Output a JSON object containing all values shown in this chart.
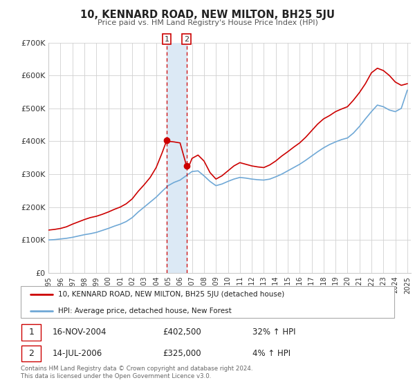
{
  "title": "10, KENNARD ROAD, NEW MILTON, BH25 5JU",
  "subtitle": "Price paid vs. HM Land Registry's House Price Index (HPI)",
  "legend_line1": "10, KENNARD ROAD, NEW MILTON, BH25 5JU (detached house)",
  "legend_line2": "HPI: Average price, detached house, New Forest",
  "sale1_date": "16-NOV-2004",
  "sale1_price": "£402,500",
  "sale1_hpi": "32% ↑ HPI",
  "sale1_date_num": 2004.88,
  "sale1_price_val": 402500,
  "sale2_date": "14-JUL-2006",
  "sale2_price": "£325,000",
  "sale2_hpi": "4% ↑ HPI",
  "sale2_date_num": 2006.54,
  "sale2_price_val": 325000,
  "footnote": "Contains HM Land Registry data © Crown copyright and database right 2024.\nThis data is licensed under the Open Government Licence v3.0.",
  "hpi_color": "#6fa8d6",
  "price_color": "#cc0000",
  "shade_color": "#dce9f5",
  "ylim": [
    0,
    700000
  ],
  "xlim_start": 1995.0,
  "xlim_end": 2025.3,
  "hpi_data": [
    [
      1995.0,
      100000
    ],
    [
      1995.5,
      101000
    ],
    [
      1996.0,
      103000
    ],
    [
      1996.5,
      105000
    ],
    [
      1997.0,
      108000
    ],
    [
      1997.5,
      112000
    ],
    [
      1998.0,
      116000
    ],
    [
      1998.5,
      119000
    ],
    [
      1999.0,
      123000
    ],
    [
      1999.5,
      129000
    ],
    [
      2000.0,
      135000
    ],
    [
      2000.5,
      142000
    ],
    [
      2001.0,
      148000
    ],
    [
      2001.5,
      156000
    ],
    [
      2002.0,
      168000
    ],
    [
      2002.5,
      185000
    ],
    [
      2003.0,
      200000
    ],
    [
      2003.5,
      215000
    ],
    [
      2004.0,
      230000
    ],
    [
      2004.5,
      248000
    ],
    [
      2005.0,
      265000
    ],
    [
      2005.5,
      275000
    ],
    [
      2006.0,
      282000
    ],
    [
      2006.5,
      295000
    ],
    [
      2007.0,
      308000
    ],
    [
      2007.5,
      310000
    ],
    [
      2008.0,
      295000
    ],
    [
      2008.5,
      278000
    ],
    [
      2009.0,
      265000
    ],
    [
      2009.5,
      270000
    ],
    [
      2010.0,
      278000
    ],
    [
      2010.5,
      285000
    ],
    [
      2011.0,
      290000
    ],
    [
      2011.5,
      288000
    ],
    [
      2012.0,
      285000
    ],
    [
      2012.5,
      283000
    ],
    [
      2013.0,
      282000
    ],
    [
      2013.5,
      285000
    ],
    [
      2014.0,
      292000
    ],
    [
      2014.5,
      300000
    ],
    [
      2015.0,
      310000
    ],
    [
      2015.5,
      320000
    ],
    [
      2016.0,
      330000
    ],
    [
      2016.5,
      342000
    ],
    [
      2017.0,
      355000
    ],
    [
      2017.5,
      368000
    ],
    [
      2018.0,
      380000
    ],
    [
      2018.5,
      390000
    ],
    [
      2019.0,
      398000
    ],
    [
      2019.5,
      405000
    ],
    [
      2020.0,
      410000
    ],
    [
      2020.5,
      425000
    ],
    [
      2021.0,
      445000
    ],
    [
      2021.5,
      468000
    ],
    [
      2022.0,
      490000
    ],
    [
      2022.5,
      510000
    ],
    [
      2023.0,
      505000
    ],
    [
      2023.5,
      495000
    ],
    [
      2024.0,
      490000
    ],
    [
      2024.5,
      500000
    ],
    [
      2025.0,
      555000
    ]
  ],
  "price_data": [
    [
      1995.0,
      130000
    ],
    [
      1995.5,
      132000
    ],
    [
      1996.0,
      135000
    ],
    [
      1996.5,
      140000
    ],
    [
      1997.0,
      148000
    ],
    [
      1997.5,
      155000
    ],
    [
      1998.0,
      162000
    ],
    [
      1998.5,
      168000
    ],
    [
      1999.0,
      172000
    ],
    [
      1999.5,
      178000
    ],
    [
      2000.0,
      185000
    ],
    [
      2000.5,
      193000
    ],
    [
      2001.0,
      200000
    ],
    [
      2001.5,
      210000
    ],
    [
      2002.0,
      225000
    ],
    [
      2002.5,
      248000
    ],
    [
      2003.0,
      268000
    ],
    [
      2003.5,
      290000
    ],
    [
      2004.0,
      320000
    ],
    [
      2004.5,
      365000
    ],
    [
      2004.88,
      402500
    ],
    [
      2005.0,
      400000
    ],
    [
      2005.5,
      398000
    ],
    [
      2006.0,
      395000
    ],
    [
      2006.54,
      325000
    ],
    [
      2006.8,
      330000
    ],
    [
      2007.0,
      348000
    ],
    [
      2007.5,
      358000
    ],
    [
      2008.0,
      340000
    ],
    [
      2008.5,
      305000
    ],
    [
      2009.0,
      285000
    ],
    [
      2009.5,
      295000
    ],
    [
      2010.0,
      310000
    ],
    [
      2010.5,
      325000
    ],
    [
      2011.0,
      335000
    ],
    [
      2011.5,
      330000
    ],
    [
      2012.0,
      325000
    ],
    [
      2012.5,
      322000
    ],
    [
      2013.0,
      320000
    ],
    [
      2013.5,
      328000
    ],
    [
      2014.0,
      340000
    ],
    [
      2014.5,
      355000
    ],
    [
      2015.0,
      368000
    ],
    [
      2015.5,
      382000
    ],
    [
      2016.0,
      395000
    ],
    [
      2016.5,
      412000
    ],
    [
      2017.0,
      432000
    ],
    [
      2017.5,
      452000
    ],
    [
      2018.0,
      468000
    ],
    [
      2018.5,
      478000
    ],
    [
      2019.0,
      490000
    ],
    [
      2019.5,
      498000
    ],
    [
      2020.0,
      505000
    ],
    [
      2020.5,
      525000
    ],
    [
      2021.0,
      548000
    ],
    [
      2021.5,
      575000
    ],
    [
      2022.0,
      608000
    ],
    [
      2022.5,
      622000
    ],
    [
      2023.0,
      615000
    ],
    [
      2023.5,
      600000
    ],
    [
      2024.0,
      580000
    ],
    [
      2024.5,
      570000
    ],
    [
      2025.0,
      575000
    ]
  ]
}
